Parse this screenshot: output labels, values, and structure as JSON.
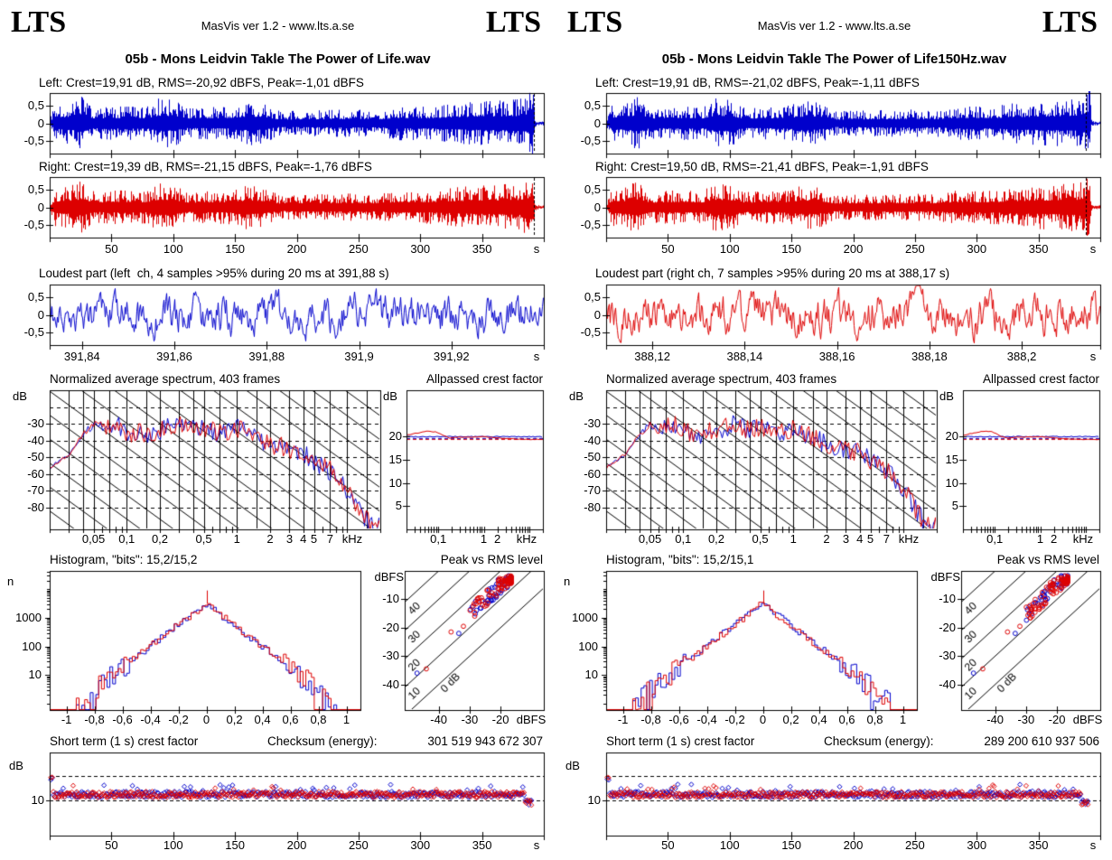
{
  "meta": {
    "background": "#ffffff",
    "frame_color": "#000000",
    "left_channel_color": "#0000cc",
    "right_channel_color": "#dd0000"
  },
  "header": {
    "logo_text": "LTS",
    "caption": "MasVis ver 1.2 - www.lts.a.se"
  },
  "panels": [
    {
      "title": "05b - Mons Leidvin Takle The Power of Life.wav",
      "left_stats": "Left: Crest=19,91 dB, RMS=-20,92 dBFS, Peak=-1,01 dBFS",
      "right_stats": "Right: Crest=19,39 dB, RMS=-21,15 dBFS, Peak=-1,76 dBFS",
      "loudest_title": "Loudest part (left  ch, 4 samples >95% during 20 ms at 391,88 s)",
      "spectrum_title": "Normalized average spectrum, 403 frames",
      "allpassed_title": "Allpassed crest factor",
      "histogram_title": "Histogram, \"bits\": 15,2/15,2",
      "peak_rms_title": "Peak vs RMS level",
      "short_term_title": "Short term (1 s) crest factor",
      "checksum_label": "Checksum (energy):",
      "checksum_value": "301 519 943 672 307"
    },
    {
      "title": "05b - Mons Leidvin Takle The Power of Life150Hz.wav",
      "left_stats": "Left: Crest=19,91 dB, RMS=-21,02 dBFS, Peak=-1,11 dBFS",
      "right_stats": "Right: Crest=19,50 dB, RMS=-21,41 dBFS, Peak=-1,91 dBFS",
      "loudest_title": "Loudest part (right ch, 7 samples >95% during 20 ms at 388,17 s)",
      "spectrum_title": "Normalized average spectrum, 403 frames",
      "allpassed_title": "Allpassed crest factor",
      "histogram_title": "Histogram, \"bits\": 15,2/15,1",
      "peak_rms_title": "Peak vs RMS level",
      "short_term_title": "Short term (1 s) crest factor",
      "checksum_label": "Checksum (energy):",
      "checksum_value": "289 200 610 937 506"
    }
  ],
  "chart_data": {
    "type": "multi-panel-audio-analysis",
    "time_axis": {
      "xlim": [
        0,
        400
      ],
      "tick_values": [
        50,
        100,
        150,
        200,
        250,
        300,
        350
      ],
      "tick_labels": [
        "50",
        "100",
        "150",
        "200",
        "250",
        "300",
        "350"
      ],
      "unit": "s"
    },
    "waveform": {
      "type": "waveform",
      "ylim": [
        -0.85,
        0.85
      ],
      "tick_values": [
        0.5,
        0,
        -0.5
      ],
      "tick_labels": [
        "0,5",
        "0",
        "-0,5"
      ],
      "loudest_marker_s": [
        391.88,
        388.17
      ],
      "envelope": [
        [
          0,
          0.1
        ],
        [
          4,
          0.42
        ],
        [
          15,
          0.46
        ],
        [
          26,
          0.6
        ],
        [
          36,
          0.34
        ],
        [
          55,
          0.38
        ],
        [
          78,
          0.36
        ],
        [
          88,
          0.56
        ],
        [
          100,
          0.52
        ],
        [
          112,
          0.34
        ],
        [
          145,
          0.38
        ],
        [
          160,
          0.5
        ],
        [
          172,
          0.46
        ],
        [
          186,
          0.27
        ],
        [
          215,
          0.29
        ],
        [
          245,
          0.31
        ],
        [
          266,
          0.29
        ],
        [
          282,
          0.38
        ],
        [
          310,
          0.37
        ],
        [
          332,
          0.46
        ],
        [
          358,
          0.5
        ],
        [
          380,
          0.54
        ],
        [
          386,
          0.62
        ],
        [
          389.5,
          0.8
        ],
        [
          391.5,
          0.86
        ],
        [
          392.3,
          0.12
        ],
        [
          394,
          0.05
        ],
        [
          400,
          0.045
        ]
      ]
    },
    "loudest": {
      "type": "line",
      "unit": "s",
      "tick_values": [
        0.5,
        0,
        -0.5
      ],
      "tick_labels": [
        "0,5",
        "0",
        "-0,5"
      ],
      "panels": [
        {
          "xlim": [
            391.833,
            391.94
          ],
          "tick_values": [
            391.84,
            391.86,
            391.88,
            391.9,
            391.92
          ],
          "tick_labels": [
            "391,84",
            "391,86",
            "391,88",
            "391,9",
            "391,92"
          ],
          "amplitude": 0.38
        },
        {
          "xlim": [
            388.11,
            388.217
          ],
          "tick_values": [
            388.12,
            388.14,
            388.16,
            388.18,
            388.2
          ],
          "tick_labels": [
            "388,12",
            "388,14",
            "388,16",
            "388,18",
            "388,2"
          ],
          "amplitude": 0.4
        }
      ]
    },
    "spectrum": {
      "type": "line",
      "ylabel": "dB",
      "unit": "kHz",
      "xlim_khz": [
        0.02,
        20
      ],
      "ylim_db": [
        -10,
        -93
      ],
      "ytick_values": [
        -30,
        -40,
        -50,
        -60,
        -70,
        -80
      ],
      "xtick_values": [
        0.05,
        0.1,
        0.2,
        0.5,
        1,
        2,
        3,
        4,
        5,
        7
      ],
      "xtick_labels": [
        "0,05",
        "0,1",
        "0,2",
        "0,5",
        "1",
        "2",
        "3",
        "4",
        "5",
        "7"
      ],
      "dashed_db": [
        -20,
        -30,
        -40,
        -50,
        -60,
        -70,
        -80
      ],
      "grid_khz": [
        0.03,
        0.04,
        0.05,
        0.07,
        0.1,
        0.15,
        0.2,
        0.3,
        0.4,
        0.5,
        0.7,
        1,
        1.5,
        2,
        3,
        4,
        5,
        7,
        10,
        15
      ],
      "trace_khz_db": [
        [
          0.02,
          -56
        ],
        [
          0.03,
          -48
        ],
        [
          0.04,
          -36
        ],
        [
          0.05,
          -30
        ],
        [
          0.06,
          -33
        ],
        [
          0.08,
          -30
        ],
        [
          0.1,
          -35
        ],
        [
          0.15,
          -36
        ],
        [
          0.2,
          -34
        ],
        [
          0.3,
          -30
        ],
        [
          0.4,
          -34
        ],
        [
          0.5,
          -32
        ],
        [
          0.7,
          -36
        ],
        [
          1,
          -32
        ],
        [
          1.5,
          -39
        ],
        [
          2,
          -42
        ],
        [
          3,
          -45
        ],
        [
          4,
          -48
        ],
        [
          5,
          -52
        ],
        [
          7,
          -58
        ],
        [
          9,
          -66
        ],
        [
          11,
          -74
        ],
        [
          13,
          -82
        ],
        [
          16,
          -90
        ],
        [
          20,
          -92
        ]
      ],
      "noise_db": 6
    },
    "allpassed": {
      "type": "line",
      "ylabel": "dB",
      "unit": "kHz",
      "xlim_khz": [
        0.02,
        20
      ],
      "ylim": [
        0,
        30
      ],
      "ytick_values": [
        20,
        15,
        10,
        5
      ],
      "xtick_values": [
        0.1,
        1,
        2
      ],
      "xtick_labels": [
        "0,1",
        "1",
        "2"
      ],
      "left_line_db": 20.0,
      "left_dashed_db": 19.6,
      "right_dashed_db": 19.4,
      "right_line": [
        [
          0.02,
          20.3
        ],
        [
          0.04,
          20.9
        ],
        [
          0.06,
          21.2
        ],
        [
          0.09,
          21.0
        ],
        [
          0.13,
          20.2
        ],
        [
          0.18,
          19.7
        ],
        [
          0.3,
          19.9
        ],
        [
          0.6,
          19.9
        ],
        [
          1,
          20.0
        ],
        [
          2,
          19.7
        ],
        [
          4,
          19.5
        ],
        [
          10,
          19.4
        ],
        [
          20,
          19.4
        ]
      ]
    },
    "histogram": {
      "type": "bar",
      "ylabel": "n",
      "xlim": [
        -1.12,
        1.1
      ],
      "ylim_log": [
        0.6,
        44000
      ],
      "ytick_values": [
        1000,
        100,
        10
      ],
      "ytick_labels": [
        "1000",
        "100",
        "10"
      ],
      "xtick_values": [
        -1,
        -0.8,
        -0.6,
        -0.4,
        -0.2,
        0,
        0.2,
        0.4,
        0.6,
        0.8,
        1
      ],
      "xtick_labels": [
        "-1",
        "-0,8",
        "-0,6",
        "-0,4",
        "-0,2",
        "0",
        "0,2",
        "0,4",
        "0,6",
        "0,8",
        "1"
      ],
      "peak_n": 3200,
      "spike_n": 9000,
      "base_halfwidth": 0.93
    },
    "peak_vs_rms": {
      "type": "scatter",
      "ylabel": "dBFS",
      "xlabel_unit": "dBFS",
      "xlim": [
        -51,
        -6
      ],
      "ylim": [
        -49,
        0
      ],
      "xtick_values": [
        -40,
        -30,
        -20
      ],
      "ytick_values": [
        -10,
        -20,
        -30,
        -40
      ],
      "diagonal_crest_db": [
        0,
        10,
        20,
        30,
        40
      ],
      "diagonal_labels": [
        "0 dB",
        "10",
        "20",
        "30",
        "40"
      ],
      "cluster": {
        "rms_range": [
          -30,
          -16
        ],
        "crest_range": [
          12,
          18
        ],
        "count": 85
      },
      "outliers_rms_peak": [
        [
          -47,
          -36
        ],
        [
          -44,
          -34.5
        ],
        [
          -36,
          -21.5
        ],
        [
          -33.5,
          -22
        ],
        [
          -32,
          -19.5
        ]
      ]
    },
    "short_term_crest": {
      "type": "scatter",
      "ylabel": "dB",
      "ylim": [
        -5,
        30
      ],
      "ytick_values": [
        10
      ],
      "dashed_values": [
        10,
        20
      ],
      "mean_db": 12.3,
      "spread_db": 1.3,
      "outlier_start_db": 19,
      "points": 390
    }
  }
}
